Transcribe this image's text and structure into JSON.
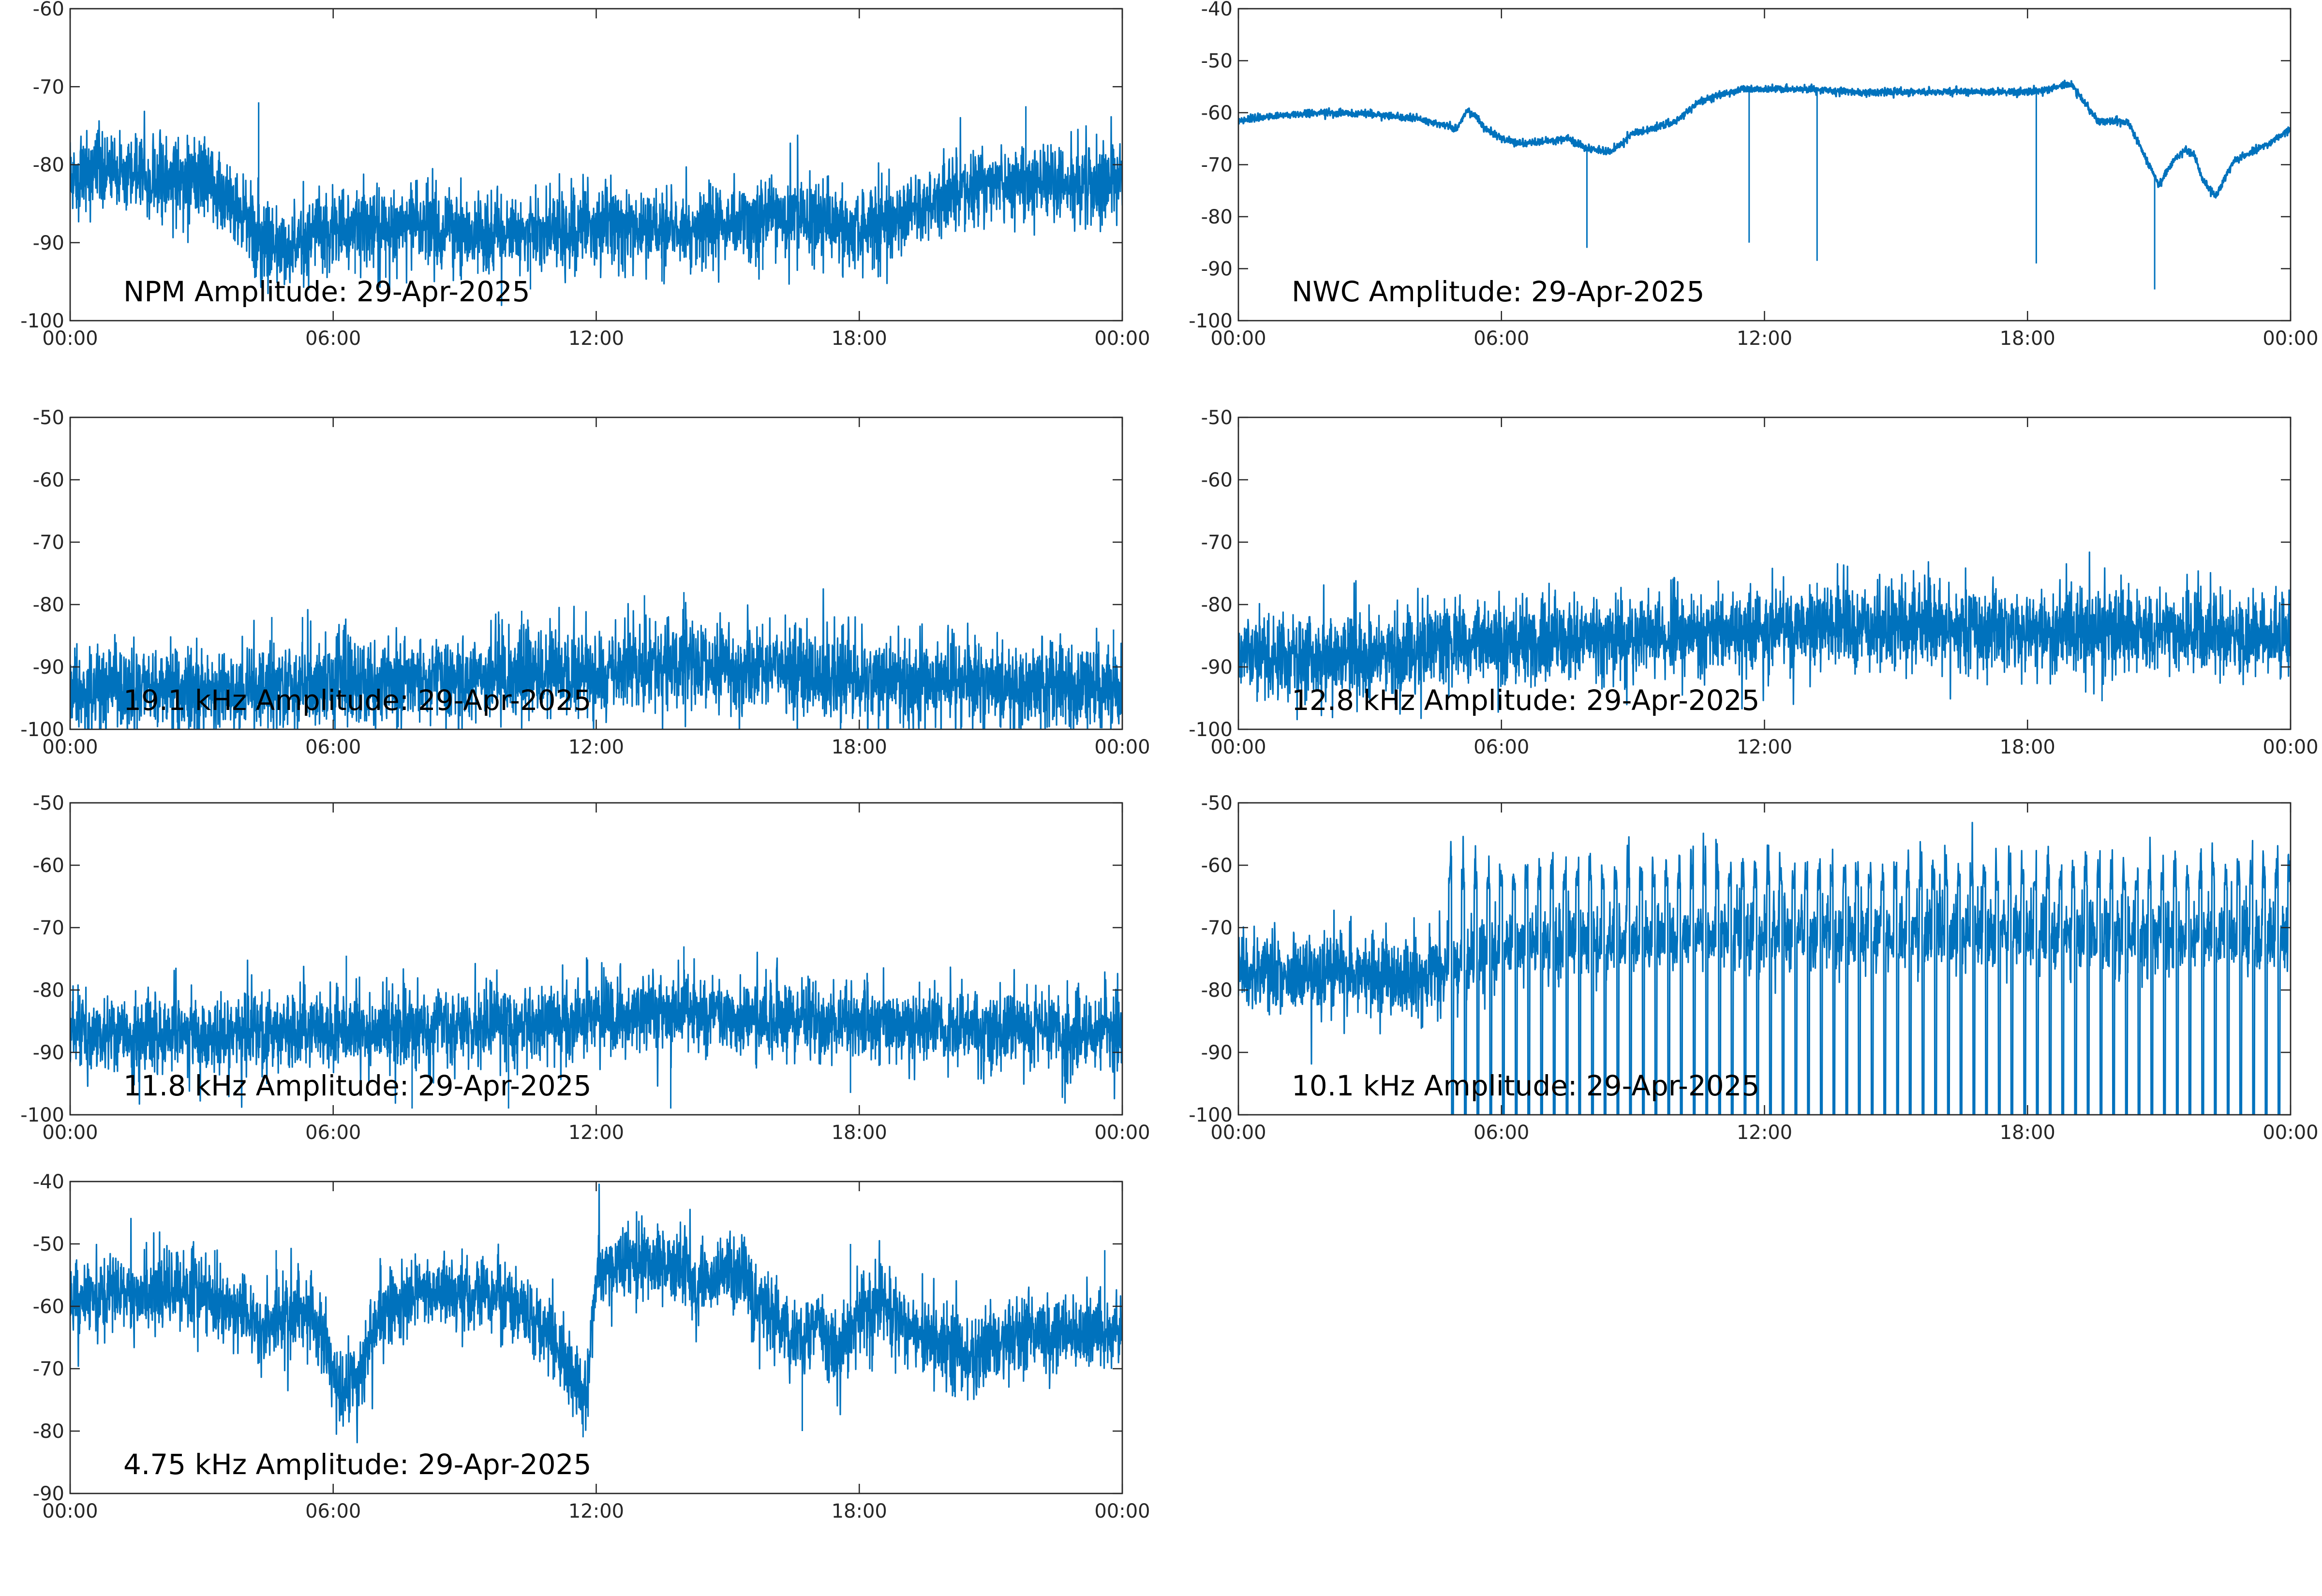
{
  "colors": {
    "series": "#0072BD",
    "axis": "#262626",
    "background": "#ffffff"
  },
  "chart_data": [
    {
      "type": "line",
      "annotation": "NPM Amplitude: 29-Apr-2025",
      "x_tick_labels": [
        "00:00",
        "06:00",
        "12:00",
        "18:00",
        "00:00"
      ],
      "x_unit": "hours",
      "xlim": [
        0,
        24
      ],
      "ylim": [
        -100,
        -60
      ],
      "y_ticks": [
        -100,
        -90,
        -80,
        -70,
        -60
      ],
      "grid": false,
      "series": [
        {
          "noise": 2.5,
          "x": [
            0,
            1,
            2,
            3,
            3.5,
            4,
            4.3,
            4.5,
            5,
            5.5,
            6,
            7,
            8,
            9,
            10,
            11,
            12,
            13,
            14,
            15,
            16,
            17,
            17.5,
            18,
            18.5,
            19,
            20,
            21,
            22,
            23,
            24
          ],
          "values": [
            -81.5,
            -81,
            -81.5,
            -82,
            -84,
            -87,
            -89,
            -90,
            -91,
            -89,
            -88,
            -88,
            -88,
            -88.5,
            -89,
            -88.5,
            -88,
            -88,
            -88,
            -87.5,
            -86.5,
            -87,
            -88,
            -89,
            -87,
            -86.5,
            -84,
            -82.5,
            -82,
            -82,
            -82.5
          ]
        }
      ],
      "spikes": [
        {
          "x": 4.3,
          "y": -72
        },
        {
          "x": 21.8,
          "y": -72.5
        },
        {
          "x": 6.5,
          "y": -94
        },
        {
          "x": 7.2,
          "y": -94.5
        },
        {
          "x": 9.3,
          "y": -94
        },
        {
          "x": 10.5,
          "y": -96
        },
        {
          "x": 13.5,
          "y": -95
        },
        {
          "x": 15.8,
          "y": -93.5
        },
        {
          "x": 18.3,
          "y": -93.5
        }
      ]
    },
    {
      "type": "line",
      "annotation": "NWC Amplitude: 29-Apr-2025",
      "x_tick_labels": [
        "00:00",
        "06:00",
        "12:00",
        "18:00",
        "00:00"
      ],
      "x_unit": "hours",
      "xlim": [
        0,
        24
      ],
      "ylim": [
        -100,
        -40
      ],
      "y_ticks": [
        -100,
        -90,
        -80,
        -70,
        -60,
        -50,
        -40
      ],
      "grid": false,
      "series": [
        {
          "noise": 0.35,
          "x": [
            0,
            1,
            2,
            3,
            4,
            4.5,
            5,
            5.2,
            5.4,
            5.6,
            6,
            6.5,
            7,
            7.5,
            8,
            8.5,
            9,
            9.5,
            10,
            10.5,
            11,
            11.5,
            12,
            13,
            14,
            15,
            16,
            17,
            18,
            18.5,
            19,
            19.3,
            19.6,
            20,
            20.3,
            20.6,
            21,
            21.3,
            21.6,
            21.8,
            22,
            22.3,
            22.7,
            23,
            23.5,
            24
          ],
          "values": [
            -61.5,
            -60.5,
            -60,
            -60.3,
            -61,
            -62,
            -63,
            -59.5,
            -60.5,
            -63,
            -65,
            -66,
            -65.5,
            -65,
            -67,
            -67.5,
            -64,
            -63,
            -61.5,
            -58,
            -56.5,
            -55.5,
            -55.5,
            -55.5,
            -56,
            -56,
            -56,
            -56,
            -56,
            -55.5,
            -54.5,
            -58,
            -61.5,
            -61.5,
            -62,
            -67,
            -74,
            -69.5,
            -67,
            -68,
            -73,
            -76,
            -69.5,
            -68,
            -66,
            -63
          ]
        }
      ],
      "spikes": [
        {
          "x": 7.95,
          "y": -86
        },
        {
          "x": 11.65,
          "y": -85
        },
        {
          "x": 13.2,
          "y": -88.5
        },
        {
          "x": 18.2,
          "y": -89
        },
        {
          "x": 20.9,
          "y": -94
        }
      ]
    },
    {
      "type": "line",
      "annotation": "19.1 kHz Amplitude: 29-Apr-2025",
      "x_tick_labels": [
        "00:00",
        "06:00",
        "12:00",
        "18:00",
        "00:00"
      ],
      "x_unit": "hours",
      "xlim": [
        0,
        24
      ],
      "ylim": [
        -100,
        -50
      ],
      "y_ticks": [
        -100,
        -90,
        -80,
        -70,
        -60,
        -50
      ],
      "grid": false,
      "series": [
        {
          "noise": 3.4,
          "x": [
            0,
            2,
            4,
            4.5,
            6,
            8,
            10,
            12,
            13,
            14,
            15,
            18,
            21,
            24
          ],
          "values": [
            -94,
            -93.5,
            -94,
            -93,
            -92.5,
            -92,
            -91.5,
            -91,
            -90,
            -89.5,
            -90,
            -92,
            -93,
            -94
          ]
        }
      ],
      "spikes": [
        {
          "x": 4.6,
          "y": -82
        },
        {
          "x": 5.3,
          "y": -82
        },
        {
          "x": 10.3,
          "y": -81
        },
        {
          "x": 13.1,
          "y": -78.5
        },
        {
          "x": 14.0,
          "y": -78
        },
        {
          "x": 23.8,
          "y": -84
        }
      ]
    },
    {
      "type": "line",
      "annotation": "12.8 kHz Amplitude: 29-Apr-2025",
      "x_tick_labels": [
        "00:00",
        "06:00",
        "12:00",
        "18:00",
        "00:00"
      ],
      "x_unit": "hours",
      "xlim": [
        0,
        24
      ],
      "ylim": [
        -100,
        -50
      ],
      "y_ticks": [
        -100,
        -90,
        -80,
        -70,
        -60,
        -50
      ],
      "grid": false,
      "series": [
        {
          "noise": 3.3,
          "x": [
            0,
            2,
            4,
            4.8,
            6,
            9,
            12,
            14,
            18,
            21,
            24
          ],
          "values": [
            -88,
            -88.5,
            -88.5,
            -86.5,
            -86,
            -85,
            -84,
            -83.5,
            -84,
            -84.5,
            -85
          ]
        }
      ],
      "spikes": [
        {
          "x": 4.7,
          "y": -79
        },
        {
          "x": 13.2,
          "y": -76.5
        },
        {
          "x": 19.2,
          "y": -77
        },
        {
          "x": 19.7,
          "y": -95.5
        }
      ]
    },
    {
      "type": "line",
      "annotation": "11.8 kHz Amplitude: 29-Apr-2025",
      "x_tick_labels": [
        "00:00",
        "06:00",
        "12:00",
        "18:00",
        "00:00"
      ],
      "x_unit": "hours",
      "xlim": [
        0,
        24
      ],
      "ylim": [
        -100,
        -50
      ],
      "y_ticks": [
        -100,
        -90,
        -80,
        -70,
        -60,
        -50
      ],
      "grid": false,
      "series": [
        {
          "noise": 3.1,
          "x": [
            0,
            3,
            6,
            9,
            12,
            13.5,
            15,
            18,
            21,
            24
          ],
          "values": [
            -87,
            -87.5,
            -86.5,
            -86,
            -84.5,
            -83.5,
            -84.5,
            -85.5,
            -86,
            -87
          ]
        }
      ],
      "spikes": [
        {
          "x": 6.3,
          "y": -74.5
        },
        {
          "x": 14.0,
          "y": -73
        },
        {
          "x": 13.7,
          "y": -99
        },
        {
          "x": 7.8,
          "y": -99
        },
        {
          "x": 10.0,
          "y": -99
        },
        {
          "x": 17.8,
          "y": -96.5
        }
      ]
    },
    {
      "type": "line",
      "annotation": "10.1 kHz Amplitude: 29-Apr-2025",
      "x_tick_labels": [
        "00:00",
        "06:00",
        "12:00",
        "18:00",
        "00:00"
      ],
      "x_unit": "hours",
      "xlim": [
        0,
        24
      ],
      "ylim": [
        -100,
        -50
      ],
      "y_ticks": [
        -100,
        -90,
        -80,
        -70,
        -60,
        -50
      ],
      "grid": false,
      "pattern": "pulsed",
      "pulse_start": 4.8,
      "pulse_period": 0.29,
      "pulse_top": -64,
      "pulse_bottom": -100,
      "series": [
        {
          "noise": 3.2,
          "x": [
            0,
            2,
            4,
            4.8,
            6,
            12,
            18,
            24
          ],
          "values": [
            -77,
            -77.5,
            -78,
            -77,
            -73,
            -71,
            -71,
            -72
          ]
        }
      ],
      "spikes": []
    },
    {
      "type": "line",
      "annotation": "4.75 kHz Amplitude: 29-Apr-2025",
      "x_tick_labels": [
        "00:00",
        "06:00",
        "12:00",
        "18:00",
        "00:00"
      ],
      "x_unit": "hours",
      "xlim": [
        0,
        24
      ],
      "ylim": [
        -90,
        -40
      ],
      "y_ticks": [
        -90,
        -80,
        -70,
        -60,
        -50,
        -40
      ],
      "grid": false,
      "series": [
        {
          "noise": 3.0,
          "x": [
            0,
            1,
            2,
            3,
            3.5,
            4,
            4.5,
            5,
            5.5,
            5.8,
            6,
            6.3,
            6.6,
            7,
            7.5,
            8,
            9,
            10,
            10.5,
            11,
            11.5,
            11.8,
            12,
            12.5,
            13,
            13.5,
            14,
            14.3,
            14.6,
            15,
            15.3,
            15.6,
            16,
            16.5,
            17,
            17.5,
            18,
            18.5,
            19,
            20,
            20.5,
            21,
            22,
            23,
            24
          ],
          "values": [
            -59,
            -58,
            -58,
            -57,
            -60,
            -62,
            -63,
            -62,
            -60,
            -66,
            -72,
            -74,
            -70,
            -61,
            -59,
            -58,
            -57.5,
            -59,
            -62,
            -65,
            -72,
            -74,
            -54,
            -53,
            -53,
            -53,
            -53,
            -57,
            -55,
            -54,
            -54,
            -60,
            -61,
            -66,
            -63,
            -68,
            -62,
            -58,
            -64,
            -66,
            -69,
            -66,
            -64,
            -65,
            -64
          ]
        }
      ],
      "spikes": [
        {
          "x": 3.3,
          "y": -51
        },
        {
          "x": 4.7,
          "y": -51
        },
        {
          "x": 17.8,
          "y": -50
        },
        {
          "x": 23.6,
          "y": -51
        },
        {
          "x": 16.7,
          "y": -80
        },
        {
          "x": 11.7,
          "y": -81
        }
      ]
    }
  ]
}
